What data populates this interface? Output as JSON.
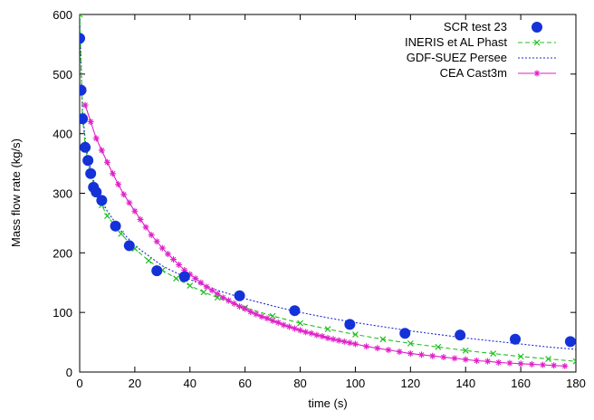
{
  "chart_data": {
    "type": "scatter",
    "xlabel": "time (s)",
    "ylabel": "Mass flow rate (kg/s)",
    "xlim": [
      0,
      180
    ],
    "ylim": [
      0,
      600
    ],
    "xticks": [
      "0",
      "20",
      "40",
      "60",
      "80",
      "100",
      "120",
      "140",
      "160",
      "180"
    ],
    "yticks": [
      "0",
      "100",
      "200",
      "300",
      "400",
      "500",
      "600"
    ],
    "grid": false,
    "legend_position": "top-right",
    "series": [
      {
        "name": "SCR test 23",
        "style": "markers",
        "marker": "filled-circle",
        "color": "#1432d8",
        "points": [
          [
            0,
            560
          ],
          [
            0.5,
            473
          ],
          [
            1,
            425
          ],
          [
            2,
            377
          ],
          [
            3,
            355
          ],
          [
            4,
            333
          ],
          [
            5,
            310
          ],
          [
            6,
            302
          ],
          [
            8,
            288
          ],
          [
            13,
            245
          ],
          [
            18,
            212
          ],
          [
            28,
            170
          ],
          [
            38,
            160
          ],
          [
            58,
            128
          ],
          [
            78,
            103
          ],
          [
            98,
            80
          ],
          [
            118,
            65
          ],
          [
            138,
            62
          ],
          [
            158,
            55
          ],
          [
            178,
            51
          ]
        ]
      },
      {
        "name": "INERIS et AL Phast",
        "style": "line-markers",
        "marker": "x",
        "line": "dashed",
        "color": "#22c022",
        "points": [
          [
            0,
            600
          ],
          [
            1,
            430
          ],
          [
            2,
            380
          ],
          [
            3,
            352
          ],
          [
            4,
            332
          ],
          [
            6,
            302
          ],
          [
            8,
            280
          ],
          [
            10,
            262
          ],
          [
            15,
            232
          ],
          [
            20,
            207
          ],
          [
            25,
            187
          ],
          [
            30,
            171
          ],
          [
            35,
            157
          ],
          [
            40,
            145
          ],
          [
            45,
            134
          ],
          [
            50,
            125
          ],
          [
            60,
            108
          ],
          [
            70,
            94
          ],
          [
            80,
            82
          ],
          [
            90,
            72
          ],
          [
            100,
            63
          ],
          [
            110,
            55
          ],
          [
            120,
            48
          ],
          [
            130,
            42
          ],
          [
            140,
            36
          ],
          [
            150,
            31
          ],
          [
            160,
            26
          ],
          [
            170,
            22
          ],
          [
            180,
            18
          ]
        ]
      },
      {
        "name": "GDF-SUEZ Persee",
        "style": "line",
        "line": "dotted",
        "color": "#1f2ad6",
        "points": [
          [
            0,
            600
          ],
          [
            1,
            440
          ],
          [
            2,
            390
          ],
          [
            3,
            360
          ],
          [
            5,
            322
          ],
          [
            8,
            288
          ],
          [
            10,
            270
          ],
          [
            15,
            237
          ],
          [
            20,
            212
          ],
          [
            30,
            178
          ],
          [
            40,
            155
          ],
          [
            50,
            137
          ],
          [
            60,
            123
          ],
          [
            70,
            111
          ],
          [
            80,
            100
          ],
          [
            90,
            91
          ],
          [
            100,
            83
          ],
          [
            110,
            76
          ],
          [
            120,
            69
          ],
          [
            130,
            63
          ],
          [
            140,
            57
          ],
          [
            150,
            52
          ],
          [
            160,
            47
          ],
          [
            170,
            42
          ],
          [
            180,
            38
          ]
        ]
      },
      {
        "name": "CEA Cast3m",
        "style": "line-markers",
        "marker": "star",
        "line": "solid",
        "color": "#e020c8",
        "points": [
          [
            2,
            448
          ],
          [
            4,
            420
          ],
          [
            6,
            392
          ],
          [
            8,
            372
          ],
          [
            10,
            352
          ],
          [
            12,
            333
          ],
          [
            14,
            315
          ],
          [
            16,
            298
          ],
          [
            18,
            284
          ],
          [
            20,
            270
          ],
          [
            22,
            256
          ],
          [
            24,
            243
          ],
          [
            26,
            230
          ],
          [
            28,
            219
          ],
          [
            30,
            208
          ],
          [
            32,
            198
          ],
          [
            34,
            189
          ],
          [
            36,
            180
          ],
          [
            38,
            171
          ],
          [
            40,
            164
          ],
          [
            42,
            157
          ],
          [
            44,
            150
          ],
          [
            46,
            143
          ],
          [
            48,
            137
          ],
          [
            50,
            131
          ],
          [
            52,
            125
          ],
          [
            54,
            120
          ],
          [
            56,
            115
          ],
          [
            58,
            110
          ],
          [
            60,
            106
          ],
          [
            62,
            101
          ],
          [
            64,
            97
          ],
          [
            66,
            93
          ],
          [
            68,
            90
          ],
          [
            70,
            86
          ],
          [
            72,
            83
          ],
          [
            74,
            79
          ],
          [
            76,
            76
          ],
          [
            78,
            73
          ],
          [
            80,
            70
          ],
          [
            82,
            67
          ],
          [
            84,
            65
          ],
          [
            86,
            62
          ],
          [
            88,
            60
          ],
          [
            90,
            57
          ],
          [
            92,
            55
          ],
          [
            94,
            53
          ],
          [
            96,
            51
          ],
          [
            98,
            49
          ],
          [
            100,
            47
          ],
          [
            104,
            43
          ],
          [
            108,
            40
          ],
          [
            112,
            37
          ],
          [
            116,
            34
          ],
          [
            120,
            31
          ],
          [
            124,
            29
          ],
          [
            128,
            27
          ],
          [
            132,
            25
          ],
          [
            136,
            23
          ],
          [
            140,
            21
          ],
          [
            144,
            19
          ],
          [
            148,
            18
          ],
          [
            152,
            16
          ],
          [
            156,
            15
          ],
          [
            160,
            14
          ],
          [
            164,
            13
          ],
          [
            168,
            12
          ],
          [
            172,
            11
          ],
          [
            176,
            10
          ]
        ]
      }
    ]
  }
}
